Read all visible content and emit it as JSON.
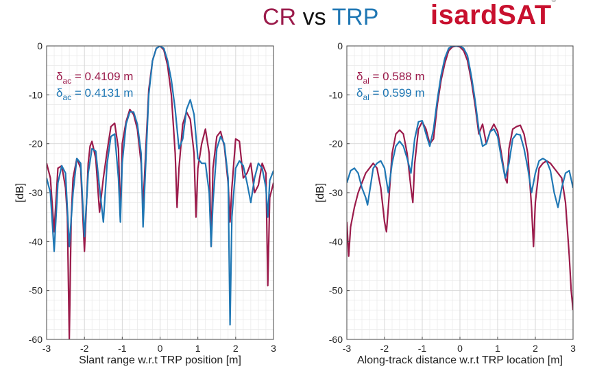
{
  "header": {
    "title_cr": "CR",
    "title_vs": "vs",
    "title_trp": "TRP",
    "logo_text": "isardSAT",
    "logo_mark": "®"
  },
  "colors": {
    "cr": "#9b1b4b",
    "trp": "#1f77b4",
    "grid": "#e8e8e8"
  },
  "chart_data": [
    {
      "type": "line",
      "title": "",
      "xlabel": "Slant range w.r.t TRP position [m]",
      "ylabel": "[dB]",
      "xlim": [
        -3,
        3
      ],
      "ylim": [
        -60,
        0
      ],
      "xticks": [
        -3,
        -2,
        -1,
        0,
        1,
        2,
        3
      ],
      "yticks": [
        0,
        -10,
        -20,
        -30,
        -40,
        -50,
        -60
      ],
      "grid": true,
      "annotations": [
        {
          "symbol": "δ",
          "sub": "ac",
          "text": " = 0.4109 m",
          "series": "CR"
        },
        {
          "symbol": "δ",
          "sub": "ac",
          "text": " = 0.4131 m",
          "series": "TRP"
        }
      ],
      "series": [
        {
          "color": "#9b1b4b",
          "x": [
            -3.0,
            -2.9,
            -2.8,
            -2.7,
            -2.6,
            -2.5,
            -2.45,
            -2.4,
            -2.35,
            -2.3,
            -2.2,
            -2.1,
            -2.0,
            -1.9,
            -1.85,
            -1.8,
            -1.7,
            -1.6,
            -1.5,
            -1.4,
            -1.3,
            -1.2,
            -1.1,
            -1.05,
            -1.0,
            -0.9,
            -0.8,
            -0.7,
            -0.6,
            -0.5,
            -0.45,
            -0.4,
            -0.3,
            -0.2,
            -0.1,
            0.0,
            0.1,
            0.2,
            0.3,
            0.4,
            0.45,
            0.5,
            0.6,
            0.7,
            0.8,
            0.9,
            0.95,
            1.0,
            1.1,
            1.2,
            1.3,
            1.35,
            1.4,
            1.5,
            1.6,
            1.7,
            1.8,
            1.85,
            1.9,
            2.0,
            2.1,
            2.2,
            2.3,
            2.4,
            2.5,
            2.6,
            2.7,
            2.8,
            2.85,
            2.9,
            3.0
          ],
          "y": [
            -24,
            -27,
            -38,
            -25,
            -24.5,
            -29,
            -35,
            -60,
            -35,
            -27,
            -23,
            -25,
            -42,
            -24,
            -20.5,
            -19.5,
            -23,
            -34,
            -27,
            -21.5,
            -16.5,
            -15.8,
            -21,
            -35,
            -20,
            -15.5,
            -13,
            -14,
            -17,
            -24,
            -33,
            -25,
            -9,
            -3,
            -0.5,
            0,
            -0.8,
            -4,
            -10,
            -22,
            -33,
            -25,
            -16,
            -13.5,
            -15,
            -22,
            -35,
            -25,
            -20,
            -17,
            -22,
            -41,
            -25,
            -18.5,
            -17.5,
            -20.5,
            -28,
            -36,
            -29,
            -19,
            -19.5,
            -27,
            -26,
            -24,
            -30,
            -28.5,
            -24,
            -26,
            -49,
            -31,
            -28
          ]
        },
        {
          "color": "#1f77b4",
          "x": [
            -3.0,
            -2.9,
            -2.8,
            -2.7,
            -2.6,
            -2.5,
            -2.4,
            -2.3,
            -2.2,
            -2.1,
            -2.0,
            -1.9,
            -1.8,
            -1.7,
            -1.6,
            -1.5,
            -1.4,
            -1.3,
            -1.2,
            -1.1,
            -1.05,
            -1.0,
            -0.9,
            -0.8,
            -0.7,
            -0.6,
            -0.5,
            -0.45,
            -0.4,
            -0.3,
            -0.2,
            -0.1,
            0.0,
            0.1,
            0.2,
            0.3,
            0.4,
            0.5,
            0.6,
            0.7,
            0.8,
            0.9,
            1.0,
            1.1,
            1.2,
            1.3,
            1.35,
            1.4,
            1.5,
            1.6,
            1.7,
            1.8,
            1.85,
            1.9,
            2.0,
            2.1,
            2.2,
            2.3,
            2.4,
            2.5,
            2.6,
            2.7,
            2.8,
            2.85,
            2.9,
            3.0
          ],
          "y": [
            -27,
            -30,
            -42,
            -28,
            -24.5,
            -26,
            -41,
            -30,
            -23,
            -24,
            -39,
            -26,
            -21,
            -21.5,
            -29,
            -36,
            -24,
            -18.5,
            -18,
            -27,
            -36,
            -24,
            -16,
            -13.5,
            -13.5,
            -16,
            -22,
            -37,
            -28,
            -10,
            -3,
            -0.5,
            0,
            -0.5,
            -3,
            -7,
            -13,
            -21,
            -19,
            -13,
            -11,
            -14,
            -23,
            -24,
            -24,
            -30,
            -41,
            -32,
            -21,
            -18.5,
            -20,
            -27,
            -57,
            -35,
            -25,
            -23.5,
            -24.5,
            -28,
            -32,
            -27,
            -24,
            -25,
            -29,
            -35,
            -27.5,
            -25.5
          ]
        }
      ]
    },
    {
      "type": "line",
      "title": "",
      "xlabel": "Along-track distance w.r.t TRP location [m]",
      "ylabel": "[dB]",
      "xlim": [
        -3,
        3
      ],
      "ylim": [
        -60,
        0
      ],
      "xticks": [
        -3,
        -2,
        -1,
        0,
        1,
        2,
        3
      ],
      "yticks": [
        0,
        -10,
        -20,
        -30,
        -40,
        -50,
        -60
      ],
      "grid": true,
      "annotations": [
        {
          "symbol": "δ",
          "sub": "al",
          "text": " = 0.588 m",
          "series": "CR"
        },
        {
          "symbol": "δ",
          "sub": "al",
          "text": " = 0.599 m",
          "series": "TRP"
        }
      ],
      "series": [
        {
          "color": "#9b1b4b",
          "x": [
            -3.0,
            -2.95,
            -2.9,
            -2.8,
            -2.7,
            -2.6,
            -2.5,
            -2.4,
            -2.3,
            -2.2,
            -2.1,
            -2.0,
            -1.95,
            -1.9,
            -1.8,
            -1.7,
            -1.6,
            -1.5,
            -1.4,
            -1.3,
            -1.25,
            -1.2,
            -1.1,
            -1.0,
            -0.9,
            -0.8,
            -0.7,
            -0.6,
            -0.5,
            -0.4,
            -0.3,
            -0.2,
            -0.1,
            0.0,
            0.1,
            0.2,
            0.3,
            0.4,
            0.5,
            0.6,
            0.7,
            0.8,
            0.9,
            1.0,
            1.1,
            1.2,
            1.25,
            1.3,
            1.4,
            1.5,
            1.6,
            1.7,
            1.8,
            1.9,
            1.95,
            2.0,
            2.1,
            2.2,
            2.3,
            2.4,
            2.5,
            2.6,
            2.7,
            2.8,
            2.9,
            2.95,
            3.0
          ],
          "y": [
            -36,
            -43,
            -37,
            -33,
            -30,
            -28,
            -26,
            -25,
            -24,
            -25,
            -29,
            -36,
            -38,
            -33,
            -22,
            -18,
            -17.2,
            -18,
            -22,
            -29,
            -32,
            -24,
            -17,
            -15.5,
            -17,
            -20,
            -19,
            -12,
            -7,
            -3.5,
            -1,
            -0.2,
            0,
            -0.2,
            -1,
            -3,
            -7,
            -12,
            -18,
            -16,
            -20,
            -17.5,
            -16,
            -17.5,
            -22,
            -27,
            -28,
            -21,
            -17,
            -16.5,
            -16.2,
            -18,
            -22,
            -33,
            -41,
            -32,
            -25,
            -24,
            -23.5,
            -24,
            -25,
            -26,
            -27,
            -32,
            -43,
            -50,
            -54
          ]
        },
        {
          "color": "#1f77b4",
          "x": [
            -3.0,
            -2.9,
            -2.8,
            -2.7,
            -2.6,
            -2.5,
            -2.45,
            -2.4,
            -2.3,
            -2.2,
            -2.1,
            -2.0,
            -1.9,
            -1.8,
            -1.7,
            -1.6,
            -1.5,
            -1.4,
            -1.3,
            -1.2,
            -1.1,
            -1.0,
            -0.9,
            -0.8,
            -0.7,
            -0.6,
            -0.5,
            -0.4,
            -0.3,
            -0.2,
            -0.1,
            0.0,
            0.1,
            0.2,
            0.3,
            0.4,
            0.5,
            0.6,
            0.7,
            0.8,
            0.9,
            1.0,
            1.1,
            1.2,
            1.3,
            1.4,
            1.5,
            1.6,
            1.7,
            1.8,
            1.9,
            2.0,
            2.1,
            2.2,
            2.3,
            2.4,
            2.5,
            2.6,
            2.7,
            2.8,
            2.9,
            3.0
          ],
          "y": [
            -28,
            -25.5,
            -25,
            -26,
            -29,
            -31,
            -32.5,
            -30,
            -25,
            -24,
            -23.5,
            -25,
            -30,
            -24,
            -20.5,
            -19.5,
            -20.5,
            -23,
            -26,
            -19,
            -15.5,
            -15.3,
            -18,
            -20.5,
            -17,
            -11,
            -6,
            -2.5,
            -0.5,
            0,
            0,
            0,
            -0.5,
            -2,
            -6,
            -11,
            -17,
            -20.5,
            -20,
            -17.5,
            -17,
            -18.5,
            -23,
            -27,
            -24,
            -19,
            -18,
            -18.2,
            -21,
            -25,
            -30,
            -26,
            -23.5,
            -23,
            -23.5,
            -25.5,
            -30,
            -33,
            -29,
            -26,
            -25.5,
            -29
          ]
        }
      ]
    }
  ]
}
